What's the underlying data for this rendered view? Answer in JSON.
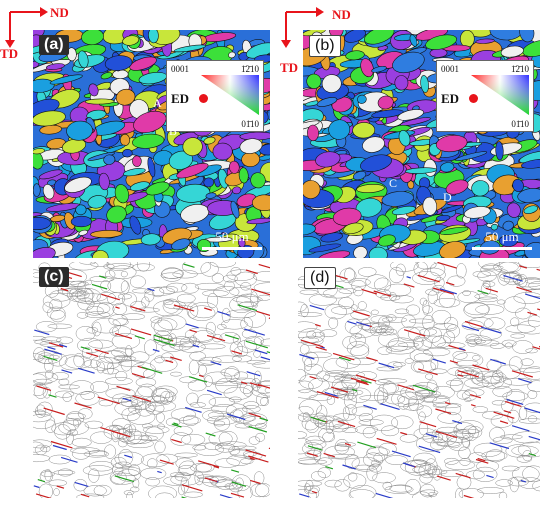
{
  "axes": {
    "nd": "ND",
    "td": "TD"
  },
  "panels": {
    "a": {
      "label": "(a)",
      "scale": "50 μm",
      "points": [
        "A",
        "B"
      ]
    },
    "b": {
      "label": "(b)",
      "scale": "50 μm",
      "points": [
        "C",
        "D"
      ]
    },
    "c": {
      "label": "(c)"
    },
    "d": {
      "label": "(d)"
    }
  },
  "legend": {
    "h0001": "0001",
    "h1210": "1̄2̄10",
    "h0110": "01̄10",
    "ed": "ED"
  },
  "colors": {
    "axis_red": "#e8141b",
    "grain_palette": [
      "#2f7de0",
      "#3ce03a",
      "#9a3fe0",
      "#e03aa8",
      "#35d6d6",
      "#2250d8",
      "#c8e63a",
      "#f0f0f0",
      "#1a9fe0",
      "#e8a030"
    ],
    "boundary_red": "#c81e1e",
    "boundary_blue": "#2a3cc8",
    "boundary_green": "#22a020"
  }
}
